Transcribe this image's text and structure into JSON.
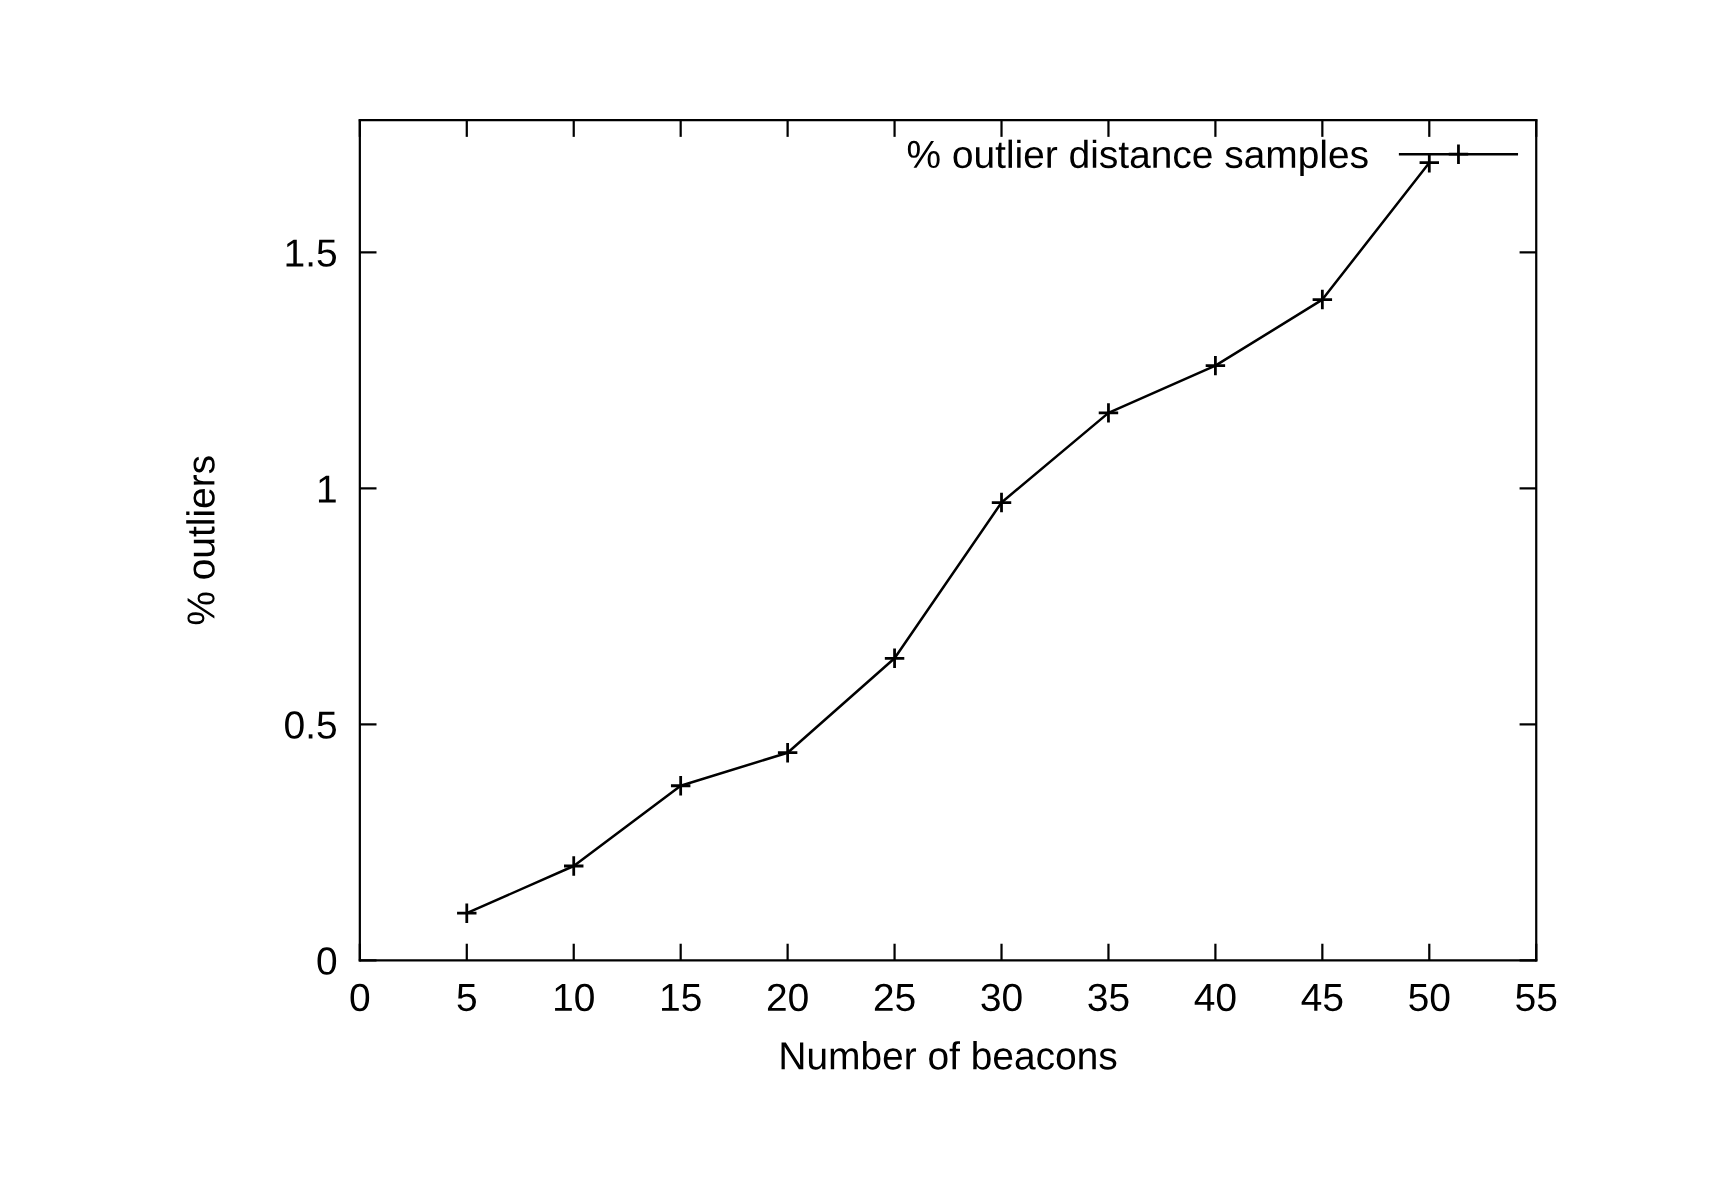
{
  "chart_data": {
    "type": "line",
    "xlabel": "Number of beacons",
    "ylabel": "% outliers",
    "x": [
      5,
      10,
      15,
      20,
      25,
      30,
      35,
      40,
      45,
      50
    ],
    "series": [
      {
        "name": "% outlier distance samples",
        "color": "#000000",
        "values": [
          0.1,
          0.2,
          0.37,
          0.44,
          0.64,
          0.97,
          1.16,
          1.26,
          1.4,
          1.69
        ]
      }
    ],
    "xlim": [
      0,
      55
    ],
    "xticks": [
      0,
      5,
      10,
      15,
      20,
      25,
      30,
      35,
      40,
      45,
      50,
      55
    ],
    "ylim": [
      0,
      1.78
    ],
    "yticks": [
      0,
      0.5,
      1,
      1.5
    ],
    "marker": "cross",
    "line_style": "solid",
    "legend": "top right",
    "grid": false
  }
}
